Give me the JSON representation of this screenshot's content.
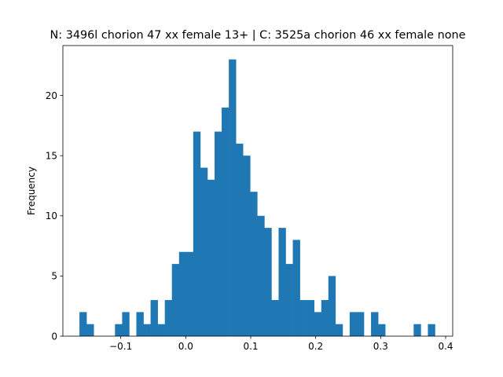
{
  "chart_data": {
    "type": "bar",
    "title": "N: 3496l chorion 47 xx female 13+ | C: 3525a chorion 46 xx female none",
    "xlabel": "",
    "ylabel": "Frequency",
    "xlim": [
      -0.1891,
      0.4109
    ],
    "ylim": [
      0,
      24.15
    ],
    "bin_width": 0.01095,
    "series": [
      {
        "values": [
          [
            -0.1636,
            2
          ],
          [
            -0.1526,
            1
          ],
          [
            -0.1417,
            0
          ],
          [
            -0.1307,
            0
          ],
          [
            -0.1198,
            0
          ],
          [
            -0.1089,
            1
          ],
          [
            -0.0979,
            2
          ],
          [
            -0.087,
            0
          ],
          [
            -0.076,
            2
          ],
          [
            -0.0651,
            1
          ],
          [
            -0.0541,
            3
          ],
          [
            -0.0432,
            1
          ],
          [
            -0.0322,
            3
          ],
          [
            -0.0213,
            6
          ],
          [
            -0.0103,
            7
          ],
          [
            0.0006,
            7
          ],
          [
            0.0115,
            17
          ],
          [
            0.0225,
            14
          ],
          [
            0.0334,
            13
          ],
          [
            0.0444,
            17
          ],
          [
            0.0553,
            19
          ],
          [
            0.0663,
            23
          ],
          [
            0.0772,
            16
          ],
          [
            0.0882,
            15
          ],
          [
            0.0991,
            12
          ],
          [
            0.1101,
            10
          ],
          [
            0.121,
            9
          ],
          [
            0.1319,
            3
          ],
          [
            0.1429,
            9
          ],
          [
            0.1538,
            6
          ],
          [
            0.1648,
            8
          ],
          [
            0.1757,
            3
          ],
          [
            0.1867,
            3
          ],
          [
            0.1976,
            2
          ],
          [
            0.2086,
            3
          ],
          [
            0.2195,
            5
          ],
          [
            0.2305,
            1
          ],
          [
            0.2414,
            0
          ],
          [
            0.2523,
            2
          ],
          [
            0.2633,
            2
          ],
          [
            0.2742,
            0
          ],
          [
            0.2852,
            2
          ],
          [
            0.2961,
            1
          ],
          [
            0.3071,
            0
          ],
          [
            0.318,
            0
          ],
          [
            0.329,
            0
          ],
          [
            0.3399,
            0
          ],
          [
            0.3508,
            1
          ],
          [
            0.3618,
            0
          ],
          [
            0.3727,
            1
          ]
        ]
      }
    ],
    "x_ticks": [
      {
        "value": -0.1,
        "label": "−0.1"
      },
      {
        "value": 0.0,
        "label": "0.0"
      },
      {
        "value": 0.1,
        "label": "0.1"
      },
      {
        "value": 0.2,
        "label": "0.2"
      },
      {
        "value": 0.3,
        "label": "0.3"
      },
      {
        "value": 0.4,
        "label": "0.4"
      }
    ],
    "y_ticks": [
      {
        "value": 0,
        "label": "0"
      },
      {
        "value": 5,
        "label": "5"
      },
      {
        "value": 10,
        "label": "10"
      },
      {
        "value": 15,
        "label": "15"
      },
      {
        "value": 20,
        "label": "20"
      }
    ],
    "grid": false,
    "legend": "none",
    "colors": {
      "bar": "#1f77b4",
      "axes": "#000000",
      "background": "#ffffff"
    }
  }
}
